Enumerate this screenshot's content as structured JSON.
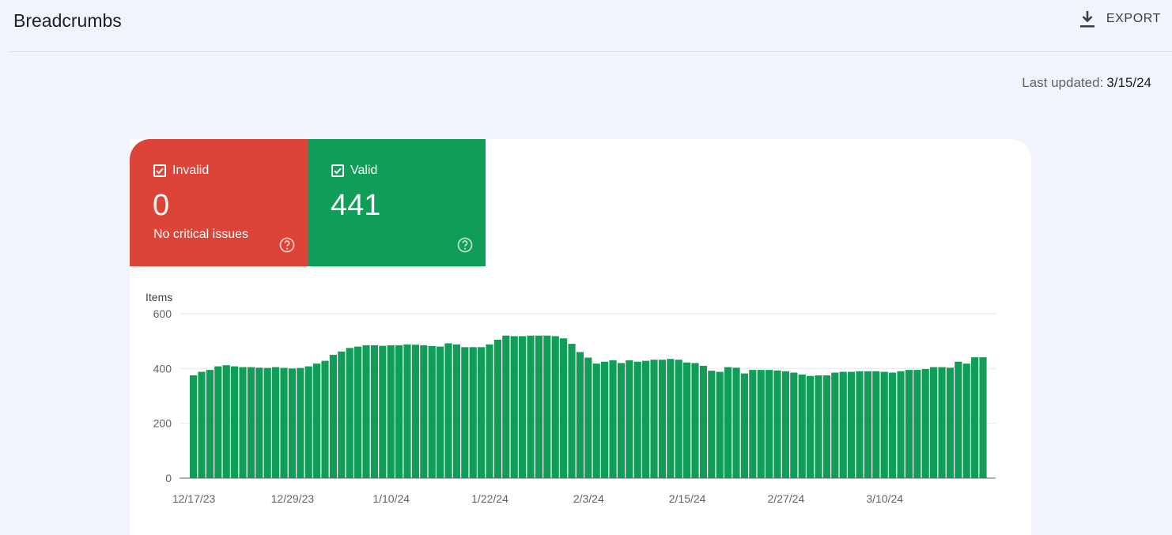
{
  "header": {
    "title": "Breadcrumbs",
    "export_label": "EXPORT",
    "export_icon": "download-icon"
  },
  "status": {
    "last_updated_label": "Last updated:",
    "last_updated_value": "3/15/24"
  },
  "tiles": {
    "invalid": {
      "label": "Invalid",
      "value": "0",
      "sub": "No critical issues",
      "color": "#db4437"
    },
    "valid": {
      "label": "Valid",
      "value": "441",
      "sub": "",
      "color": "#0f9d58"
    }
  },
  "chart_data": {
    "type": "bar",
    "ylabel": "Items",
    "ylim": [
      0,
      600
    ],
    "yticks": [
      0,
      200,
      400,
      600
    ],
    "grid": true,
    "bar_color": "#0f9d58",
    "xtick_labels": [
      "12/17/23",
      "12/29/23",
      "1/10/24",
      "1/22/24",
      "2/3/24",
      "2/15/24",
      "2/27/24",
      "3/10/24"
    ],
    "xtick_index": [
      0,
      12,
      24,
      36,
      48,
      60,
      72,
      84
    ],
    "values": [
      375,
      388,
      395,
      408,
      412,
      408,
      405,
      405,
      403,
      402,
      405,
      402,
      400,
      402,
      408,
      418,
      428,
      450,
      462,
      475,
      480,
      485,
      485,
      483,
      485,
      485,
      488,
      487,
      485,
      482,
      480,
      492,
      488,
      478,
      478,
      478,
      488,
      505,
      520,
      518,
      518,
      520,
      520,
      520,
      518,
      510,
      490,
      460,
      440,
      418,
      425,
      430,
      420,
      430,
      425,
      428,
      432,
      432,
      435,
      432,
      422,
      420,
      410,
      392,
      388,
      405,
      403,
      382,
      395,
      395,
      395,
      393,
      390,
      385,
      378,
      373,
      375,
      375,
      385,
      388,
      388,
      390,
      390,
      390,
      388,
      385,
      390,
      395,
      395,
      398,
      405,
      405,
      403,
      425,
      418,
      441,
      441
    ]
  }
}
